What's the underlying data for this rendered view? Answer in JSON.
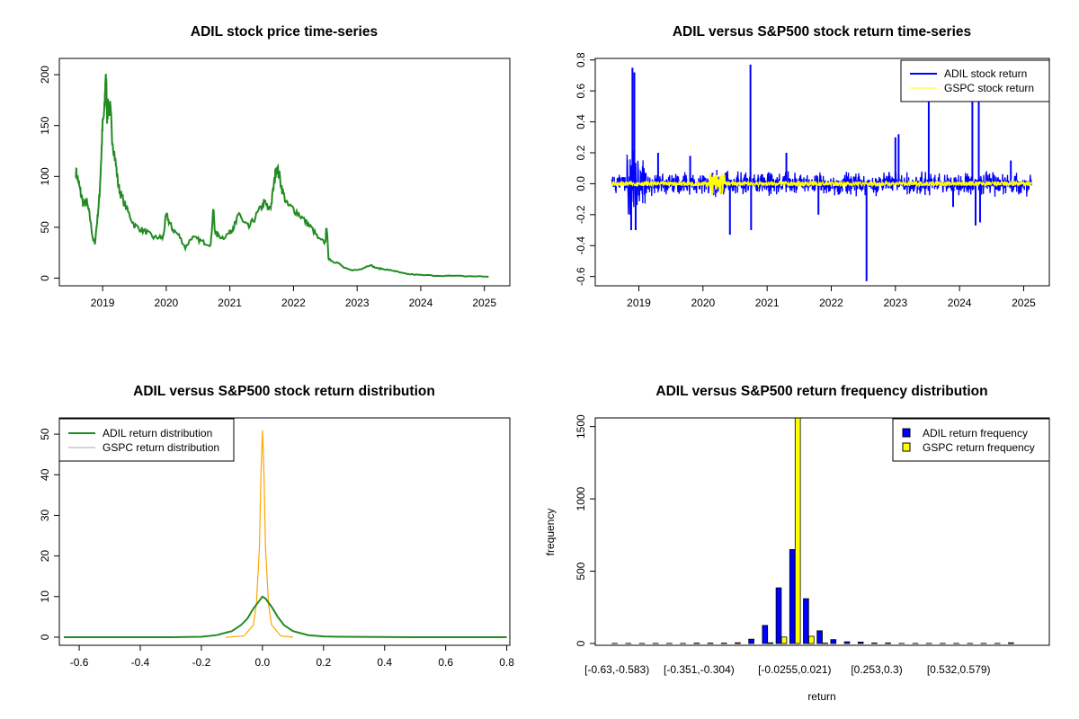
{
  "chart_data": [
    {
      "type": "line",
      "title": "ADIL stock price time-series",
      "xlim": [
        2018.32,
        2025.4
      ],
      "ylim": [
        -7.5,
        216
      ],
      "xticks": [
        2019,
        2020,
        2021,
        2022,
        2023,
        2024,
        2025
      ],
      "yticks": [
        0,
        50,
        100,
        150,
        200
      ],
      "color": "#228B22",
      "series": [
        {
          "x": [
            2018.58,
            2018.62,
            2018.65,
            2018.7,
            2018.75,
            2018.8,
            2018.85,
            2018.88,
            2018.92,
            2018.95,
            2018.98,
            2019.0,
            2019.03,
            2019.05,
            2019.07,
            2019.09,
            2019.12,
            2019.15,
            2019.2,
            2019.25,
            2019.3,
            2019.4,
            2019.5,
            2019.6,
            2019.7,
            2019.8,
            2019.9,
            2019.95,
            2020.0,
            2020.05,
            2020.1,
            2020.2,
            2020.3,
            2020.4,
            2020.5,
            2020.6,
            2020.7,
            2020.74,
            2020.76,
            2020.8,
            2020.9,
            2021.0,
            2021.05,
            2021.1,
            2021.15,
            2021.2,
            2021.3,
            2021.4,
            2021.5,
            2021.55,
            2021.6,
            2021.65,
            2021.7,
            2021.73,
            2021.78,
            2021.83,
            2021.9,
            2022.0,
            2022.1,
            2022.2,
            2022.3,
            2022.4,
            2022.5,
            2022.52,
            2022.55,
            2022.6,
            2022.7,
            2022.8,
            2022.9,
            2023.0,
            2023.1,
            2023.2,
            2023.3,
            2023.4,
            2023.5,
            2023.6,
            2023.7,
            2023.8,
            2024.0,
            2024.3,
            2024.6,
            2024.9,
            2025.1
          ],
          "y": [
            105,
            95,
            85,
            72,
            75,
            60,
            38,
            35,
            60,
            80,
            120,
            150,
            165,
            205,
            160,
            170,
            165,
            140,
            115,
            90,
            80,
            65,
            52,
            48,
            45,
            40,
            40,
            40,
            62,
            55,
            48,
            42,
            30,
            40,
            38,
            35,
            33,
            70,
            48,
            42,
            40,
            45,
            50,
            55,
            65,
            55,
            50,
            60,
            70,
            75,
            68,
            72,
            95,
            110,
            100,
            85,
            72,
            68,
            62,
            55,
            48,
            38,
            35,
            52,
            20,
            17,
            15,
            10,
            8,
            8,
            10,
            13,
            10,
            9,
            8,
            7,
            5,
            4,
            3,
            2.5,
            2,
            1.8,
            1.5
          ]
        }
      ]
    },
    {
      "type": "line",
      "title": "ADIL versus S&P500 stock return time-series",
      "xlim": [
        2018.32,
        2025.4
      ],
      "ylim": [
        -0.66,
        0.81
      ],
      "xticks": [
        2019,
        2020,
        2021,
        2022,
        2023,
        2024,
        2025
      ],
      "yticks": [
        -0.6,
        -0.4,
        -0.2,
        0.0,
        0.2,
        0.4,
        0.6,
        0.8
      ],
      "legend_position": "top-right",
      "series": [
        {
          "name": "ADIL stock return",
          "color": "#0000FF",
          "x": [
            2018.88,
            2018.9,
            2018.93,
            2018.95,
            2019.3,
            2019.8,
            2020.42,
            2020.74,
            2020.75,
            2021.3,
            2021.8,
            2022.55,
            2023.0,
            2023.05,
            2023.52,
            2023.9,
            2024.2,
            2024.25,
            2024.3,
            2024.32,
            2024.8
          ],
          "y": [
            -0.3,
            0.75,
            0.72,
            -0.3,
            0.2,
            0.18,
            -0.33,
            0.77,
            -0.3,
            0.2,
            -0.2,
            -0.63,
            0.3,
            0.32,
            0.6,
            -0.15,
            0.6,
            -0.27,
            0.6,
            -0.25,
            0.15
          ]
        },
        {
          "name": "GSPC stock return",
          "color": "#FFFF00",
          "x": [
            2020.15,
            2020.2,
            2020.25
          ],
          "y": [
            0.09,
            -0.12,
            0.07
          ]
        }
      ]
    },
    {
      "type": "line",
      "title": "ADIL versus S&P500 stock return distribution",
      "xlim": [
        -0.665,
        0.81
      ],
      "ylim": [
        -2,
        54
      ],
      "xticks": [
        -0.6,
        -0.4,
        -0.2,
        0.0,
        0.2,
        0.4,
        0.6,
        0.8
      ],
      "yticks": [
        0,
        10,
        20,
        30,
        40,
        50
      ],
      "legend_position": "top-left",
      "series": [
        {
          "name": "ADIL return distribution",
          "color": "#228B22",
          "x": [
            -0.65,
            -0.3,
            -0.2,
            -0.15,
            -0.1,
            -0.07,
            -0.05,
            -0.03,
            -0.01,
            0.0,
            0.01,
            0.03,
            0.05,
            0.07,
            0.1,
            0.15,
            0.2,
            0.25,
            0.5,
            0.8
          ],
          "y": [
            0,
            0,
            0.1,
            0.5,
            1.5,
            3,
            4.5,
            7,
            9,
            10,
            9.5,
            7.5,
            5,
            3,
            1.5,
            0.5,
            0.2,
            0.1,
            0,
            0
          ]
        },
        {
          "name": "GSPC return distribution",
          "color": "#FFA500",
          "x": [
            -0.12,
            -0.06,
            -0.03,
            -0.02,
            -0.01,
            -0.005,
            0.0,
            0.005,
            0.01,
            0.02,
            0.03,
            0.06,
            0.1
          ],
          "y": [
            0,
            0.3,
            3,
            8,
            22,
            40,
            51,
            40,
            22,
            8,
            3,
            0.3,
            0
          ]
        }
      ]
    },
    {
      "type": "bar",
      "title": "ADIL versus S&P500 return frequency distribution",
      "xlabel": "return",
      "ylabel": "frequency",
      "ylim": [
        0,
        1560
      ],
      "yticks": [
        0,
        500,
        1000,
        1500
      ],
      "tick_labels": [
        {
          "bin": 0,
          "label": "[-0.63,-0.583)"
        },
        {
          "bin": 6,
          "label": "[-0.351,-0.304)"
        },
        {
          "bin": 13,
          "label": "[-0.0255,0.021)"
        },
        {
          "bin": 19,
          "label": "[0.253,0.3)"
        },
        {
          "bin": 25,
          "label": "[0.532,0.579)"
        }
      ],
      "legend_position": "top-right",
      "series": [
        {
          "name": "ADIL return frequency",
          "color": "#0000FF",
          "values": [
            1,
            1,
            1,
            1,
            1,
            1,
            3,
            3,
            3,
            5,
            30,
            125,
            385,
            650,
            310,
            88,
            27,
            12,
            10,
            4,
            4,
            1,
            1,
            1,
            1,
            1,
            1,
            1,
            1,
            5
          ]
        },
        {
          "name": "GSPC return frequency",
          "color": "#FFFF00",
          "values": [
            0,
            0,
            0,
            0,
            0,
            0,
            0,
            0,
            0,
            0,
            0,
            5,
            45,
            1650,
            50,
            3,
            0,
            0,
            0,
            0,
            0,
            0,
            0,
            0,
            0,
            0,
            0,
            0,
            0,
            0
          ]
        }
      ]
    }
  ]
}
